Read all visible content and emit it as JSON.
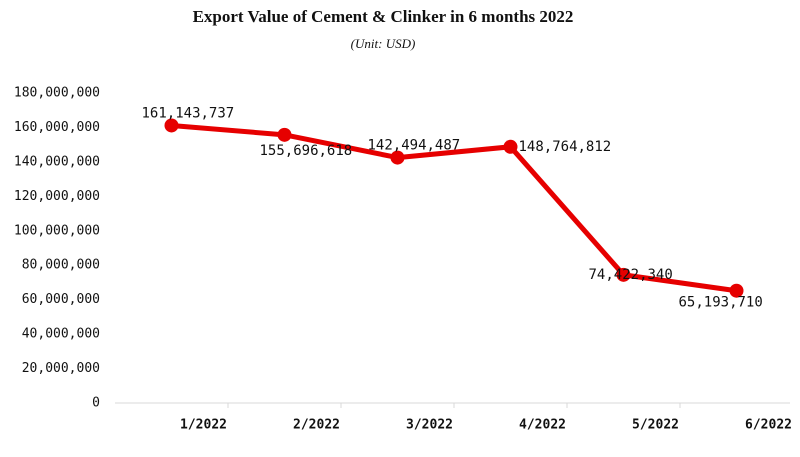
{
  "chart_data": {
    "type": "line",
    "title": "Export Value of Cement & Clinker in 6 months 2022",
    "subtitle": "(Unit: USD)",
    "categories": [
      "1/2022",
      "2/2022",
      "3/2022",
      "4/2022",
      "5/2022",
      "6/2022"
    ],
    "values": [
      161143737,
      155696618,
      142494487,
      148764812,
      74422340,
      65193710
    ],
    "value_labels": [
      "161,143,737",
      "155,696,618",
      "142,494,487",
      "148,764,812",
      "74,422,340",
      "65,193,710"
    ],
    "color": "#e60000",
    "ylim": [
      0,
      180000000
    ],
    "yticks": [
      0,
      {
        "value": 20000000,
        "label": "20,000,000"
      },
      {
        "value": 40000000,
        "label": "40,000,000"
      },
      {
        "value": 60000000,
        "label": "60,000,000"
      },
      {
        "value": 80000000,
        "label": "80,000,000"
      },
      {
        "value": 100000000,
        "label": "100,000,000"
      },
      {
        "value": 120000000,
        "label": "120,000,000"
      },
      {
        "value": 140000000,
        "label": "140,000,000"
      },
      {
        "value": 160000000,
        "label": "160,000,000"
      },
      {
        "value": 180000000,
        "label": "180,000,000"
      }
    ],
    "grid": false
  }
}
